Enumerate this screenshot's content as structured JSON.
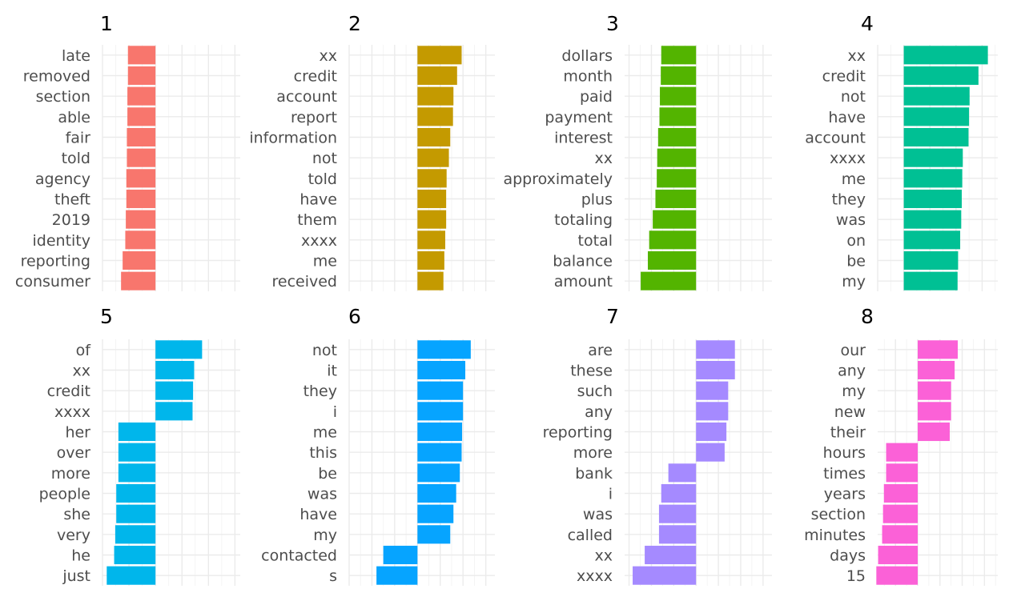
{
  "chart_data": [
    {
      "type": "bar",
      "orientation": "horizontal",
      "title": "1",
      "color": "#F8766D",
      "categories": [
        "late",
        "removed",
        "section",
        "able",
        "fair",
        "told",
        "agency",
        "theft",
        "2019",
        "identity",
        "reporting",
        "consumer"
      ],
      "values": [
        -0.52,
        -0.52,
        -0.53,
        -0.53,
        -0.54,
        -0.54,
        -0.55,
        -0.55,
        -0.56,
        -0.57,
        -0.62,
        -0.65
      ],
      "xlim": [
        -1.0,
        1.6
      ],
      "grid": true,
      "legend": "none"
    },
    {
      "type": "bar",
      "orientation": "horizontal",
      "title": "2",
      "color": "#C49A00",
      "categories": [
        "xx",
        "credit",
        "account",
        "report",
        "information",
        "not",
        "told",
        "have",
        "them",
        "xxxx",
        "me",
        "received"
      ],
      "values": [
        0.97,
        0.87,
        0.79,
        0.78,
        0.72,
        0.69,
        0.64,
        0.63,
        0.63,
        0.61,
        0.59,
        0.57
      ],
      "xlim": [
        -1.5,
        1.7
      ],
      "grid": true,
      "legend": "none"
    },
    {
      "type": "bar",
      "orientation": "horizontal",
      "title": "3",
      "color": "#53B400",
      "categories": [
        "dollars",
        "month",
        "paid",
        "payment",
        "interest",
        "xx",
        "approximately",
        "plus",
        "totaling",
        "total",
        "balance",
        "amount"
      ],
      "values": [
        -0.78,
        -0.79,
        -0.81,
        -0.82,
        -0.85,
        -0.87,
        -0.88,
        -0.91,
        -0.97,
        -1.05,
        -1.08,
        -1.24
      ],
      "xlim": [
        -1.6,
        1.7
      ],
      "grid": true,
      "legend": "none"
    },
    {
      "type": "bar",
      "orientation": "horizontal",
      "title": "4",
      "color": "#00C094",
      "categories": [
        "xx",
        "credit",
        "not",
        "have",
        "account",
        "xxxx",
        "me",
        "they",
        "was",
        "on",
        "be",
        "my"
      ],
      "values": [
        1.61,
        1.43,
        1.26,
        1.25,
        1.24,
        1.13,
        1.12,
        1.11,
        1.1,
        1.08,
        1.04,
        1.03
      ],
      "xlim": [
        -0.5,
        1.8
      ],
      "grid": true,
      "legend": "none"
    },
    {
      "type": "bar",
      "orientation": "horizontal",
      "title": "5",
      "color": "#00B6EB",
      "categories": [
        "of",
        "xx",
        "credit",
        "xxxx",
        "her",
        "over",
        "more",
        "people",
        "she",
        "very",
        "he",
        "just"
      ],
      "values": [
        0.88,
        0.73,
        0.71,
        0.7,
        -0.7,
        -0.7,
        -0.7,
        -0.74,
        -0.74,
        -0.76,
        -0.78,
        -0.92
      ],
      "xlim": [
        -1.0,
        1.6
      ],
      "grid": true,
      "legend": "none"
    },
    {
      "type": "bar",
      "orientation": "horizontal",
      "title": "6",
      "color": "#06A4FF",
      "categories": [
        "not",
        "it",
        "they",
        "i",
        "me",
        "this",
        "be",
        "was",
        "have",
        "my",
        "contacted",
        "s"
      ],
      "values": [
        1.17,
        1.05,
        1.0,
        1.0,
        0.98,
        0.97,
        0.93,
        0.85,
        0.79,
        0.72,
        -0.75,
        -0.9
      ],
      "xlim": [
        -1.5,
        1.7
      ],
      "grid": true,
      "legend": "none"
    },
    {
      "type": "bar",
      "orientation": "horizontal",
      "title": "7",
      "color": "#A58AFF",
      "categories": [
        "are",
        "these",
        "such",
        "any",
        "reporting",
        "more",
        "bank",
        "i",
        "was",
        "called",
        "xx",
        "xxxx"
      ],
      "values": [
        0.87,
        0.87,
        0.72,
        0.72,
        0.68,
        0.64,
        -0.62,
        -0.78,
        -0.83,
        -0.83,
        -1.15,
        -1.42
      ],
      "xlim": [
        -1.6,
        1.7
      ],
      "grid": true,
      "legend": "none"
    },
    {
      "type": "bar",
      "orientation": "horizontal",
      "title": "8",
      "color": "#FB61D7",
      "categories": [
        "our",
        "any",
        "my",
        "new",
        "their",
        "hours",
        "times",
        "years",
        "section",
        "minutes",
        "days",
        "15"
      ],
      "values": [
        0.9,
        0.83,
        0.75,
        0.75,
        0.72,
        -0.71,
        -0.71,
        -0.76,
        -0.78,
        -0.8,
        -0.89,
        -0.93
      ],
      "xlim": [
        -0.9,
        1.8
      ],
      "grid": true,
      "legend": "none"
    }
  ]
}
